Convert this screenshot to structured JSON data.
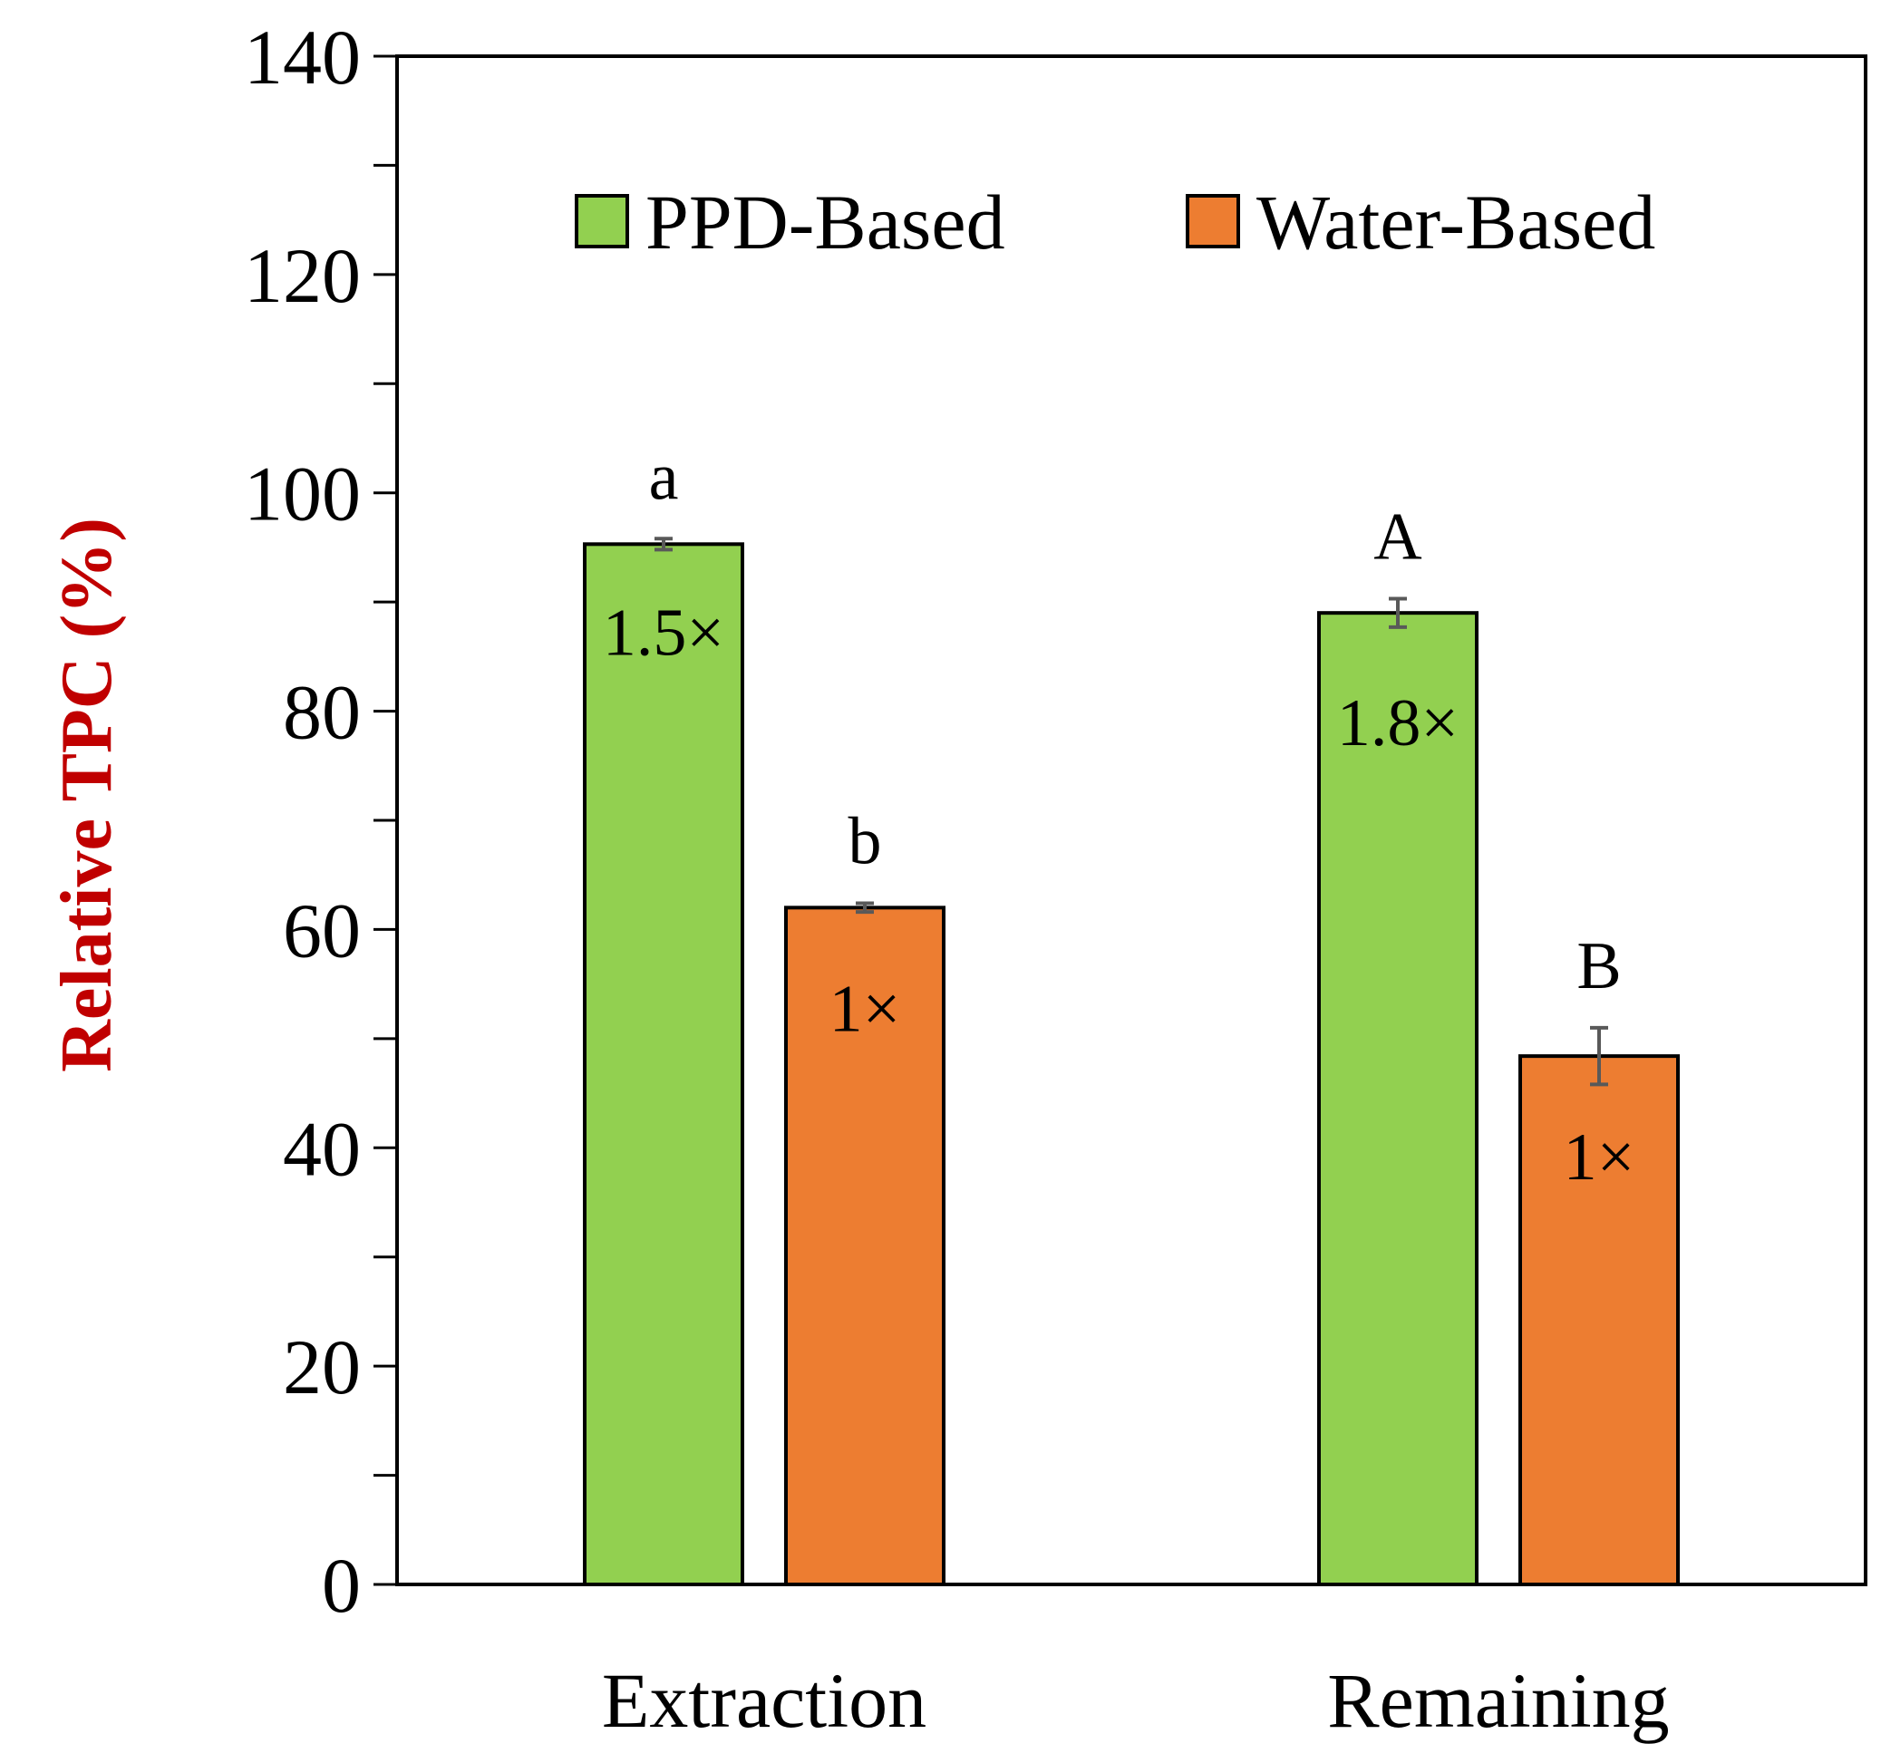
{
  "chart_data": {
    "type": "bar",
    "title": "",
    "xlabel": "",
    "ylabel": "Relative TPC (%)",
    "ylim": [
      0,
      140
    ],
    "ytick_step": 20,
    "ytick_labels": [
      "0",
      "20",
      "40",
      "60",
      "80",
      "100",
      "120",
      "140"
    ],
    "categories": [
      "Extraction",
      "Remaining"
    ],
    "legend_position": "top",
    "grid": false,
    "series": [
      {
        "name": "PPD-Based",
        "color": "#92D050",
        "values": [
          95.3,
          89.0
        ],
        "errors": [
          0.5,
          1.3
        ],
        "letters": [
          "a",
          "A"
        ],
        "inbar_labels": [
          "1.5×",
          "1.8×"
        ]
      },
      {
        "name": "Water-Based",
        "color": "#ED7D31",
        "values": [
          62.0,
          48.4
        ],
        "errors": [
          0.4,
          2.6
        ],
        "letters": [
          "b",
          "B"
        ],
        "inbar_labels": [
          "1×",
          "1×"
        ]
      }
    ],
    "ylabel_color": "#C00000",
    "axis_color": "#000000",
    "errorbar_color": "#595959"
  }
}
